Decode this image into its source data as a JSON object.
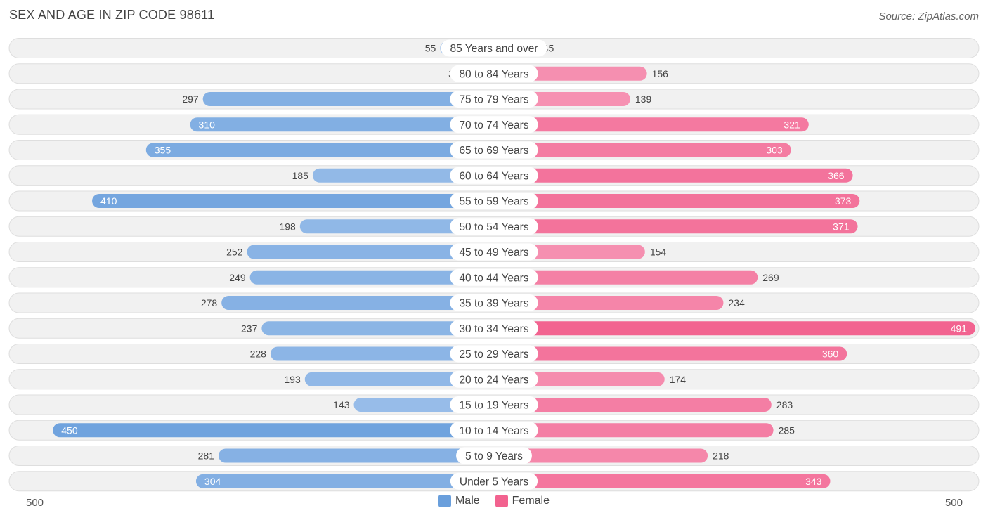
{
  "header": {
    "title": "SEX AND AGE IN ZIP CODE 98611",
    "source": "Source: ZipAtlas.com"
  },
  "colors": {
    "male": "#6a9fdc",
    "male_light": "#a9c8ee",
    "female": "#f2628f",
    "female_light": "#f7a3bf",
    "track": "#f1f1f1",
    "track_border": "#dedede"
  },
  "chart_data": {
    "type": "bar",
    "orientation": "horizontal-diverging",
    "categories": [
      "85 Years and over",
      "80 to 84 Years",
      "75 to 79 Years",
      "70 to 74 Years",
      "65 to 69 Years",
      "60 to 64 Years",
      "55 to 59 Years",
      "50 to 54 Years",
      "45 to 49 Years",
      "40 to 44 Years",
      "35 to 39 Years",
      "30 to 34 Years",
      "25 to 29 Years",
      "20 to 24 Years",
      "15 to 19 Years",
      "10 to 14 Years",
      "5 to 9 Years",
      "Under 5 Years"
    ],
    "series": [
      {
        "name": "Male",
        "values": [
          55,
          31,
          297,
          310,
          355,
          185,
          410,
          198,
          252,
          249,
          278,
          237,
          228,
          193,
          143,
          450,
          281,
          304
        ]
      },
      {
        "name": "Female",
        "values": [
          45,
          156,
          139,
          321,
          303,
          366,
          373,
          371,
          154,
          269,
          234,
          491,
          360,
          174,
          283,
          285,
          218,
          343
        ]
      }
    ],
    "xlim": [
      0,
      500
    ],
    "axis_labels": {
      "left": "500",
      "right": "500"
    },
    "legend_placement": "bottom-center",
    "grid": false
  }
}
